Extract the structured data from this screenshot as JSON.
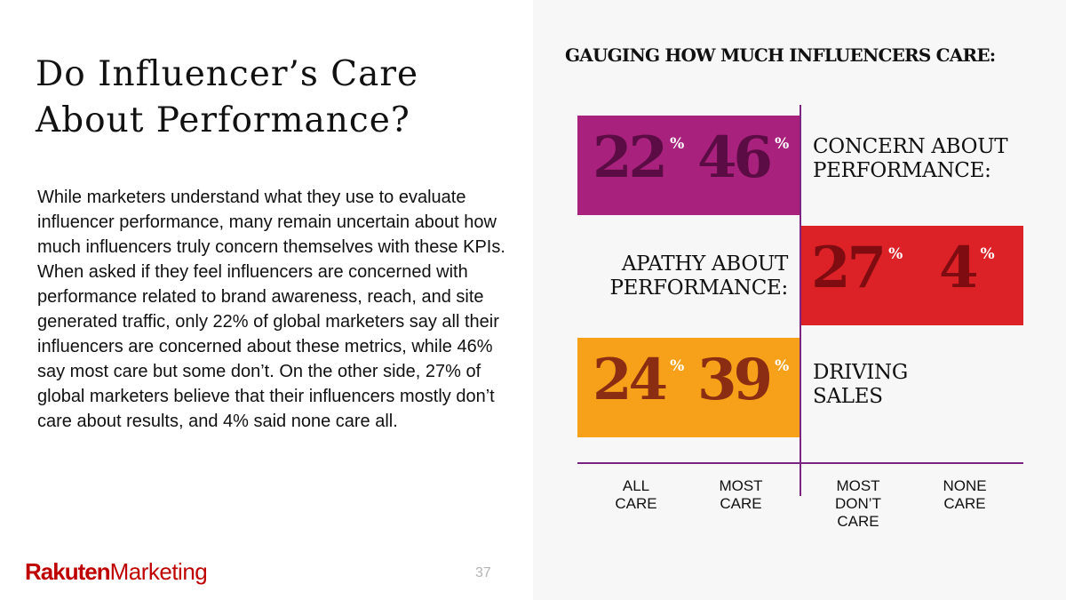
{
  "slide": {
    "title_line1": "Do Influencer’s Care",
    "title_line2": "About Performance?",
    "body": "While marketers understand what they use to evaluate influencer performance, many remain uncertain about how much influencers truly concern themselves with these KPIs. When asked if they feel influencers are concerned with performance related to brand awareness, reach, and site generated traffic, only 22% of global marketers say all their influencers are concerned about these metrics, while 46% say most care but some don’t. On the other side, 27% of global marketers believe that their influencers mostly don’t care about results, and 4% said none care all.",
    "page_number": "37"
  },
  "logo": {
    "brand": "Rakuten",
    "product": "Marketing"
  },
  "chart_data": {
    "type": "bar",
    "title": "GAUGING HOW MUCH INFLUENCERS CARE:",
    "categories": [
      "ALL CARE",
      "MOST CARE",
      "MOST DON’T CARE",
      "NONE CARE"
    ],
    "category_lines": [
      [
        "ALL",
        "CARE"
      ],
      [
        "MOST",
        "CARE"
      ],
      [
        "MOST",
        "DON’T",
        "CARE"
      ],
      [
        "NONE",
        "CARE"
      ]
    ],
    "unit_symbol": "%",
    "series": [
      {
        "name": "CONCERN ABOUT PERFORMANCE:",
        "label_lines": [
          "CONCERN ABOUT",
          "PERFORMANCE:"
        ],
        "side": "left",
        "color": "#a8217d",
        "text_color": "#5c0c45",
        "values": [
          22,
          46,
          null,
          null
        ]
      },
      {
        "name": "APATHY ABOUT PERFORMANCE:",
        "label_lines": [
          "APATHY ABOUT",
          "PERFORMANCE:"
        ],
        "side": "right",
        "color": "#dc2127",
        "text_color": "#7e0c10",
        "values": [
          null,
          null,
          27,
          4
        ]
      },
      {
        "name": "DRIVING SALES",
        "label_lines": [
          "DRIVING",
          "SALES"
        ],
        "side": "left",
        "color": "#f7a11a",
        "text_color": "#8b2d12",
        "values": [
          24,
          39,
          null,
          null
        ]
      }
    ],
    "axis_color": "#7a2582"
  }
}
